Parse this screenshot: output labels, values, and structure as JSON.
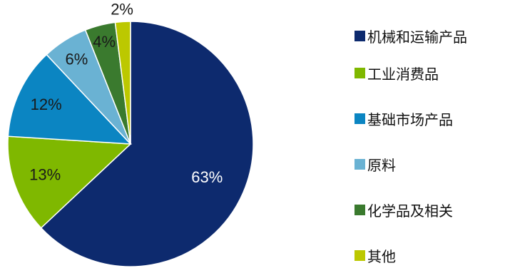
{
  "chart_data": {
    "type": "pie",
    "title": "",
    "legend_position": "right",
    "slices": [
      {
        "label": "机械和运输产品",
        "value": 63,
        "display": "63%",
        "color": "#0d2a6e",
        "text_color": "#ffffff"
      },
      {
        "label": "工业消费品",
        "value": 13,
        "display": "13%",
        "color": "#7fb800",
        "text_color": "#1a1a1a"
      },
      {
        "label": "基础市场产品",
        "value": 12,
        "display": "12%",
        "color": "#0b85c2",
        "text_color": "#1a1a1a"
      },
      {
        "label": "原料",
        "value": 6,
        "display": "6%",
        "color": "#6ab2d3",
        "text_color": "#1a1a1a"
      },
      {
        "label": "化学品及相关",
        "value": 4,
        "display": "4%",
        "color": "#3a7a2e",
        "text_color": "#1a1a1a"
      },
      {
        "label": "其他",
        "value": 2,
        "display": "2%",
        "color": "#bcc800",
        "text_color": "#1a1a1a"
      }
    ]
  }
}
